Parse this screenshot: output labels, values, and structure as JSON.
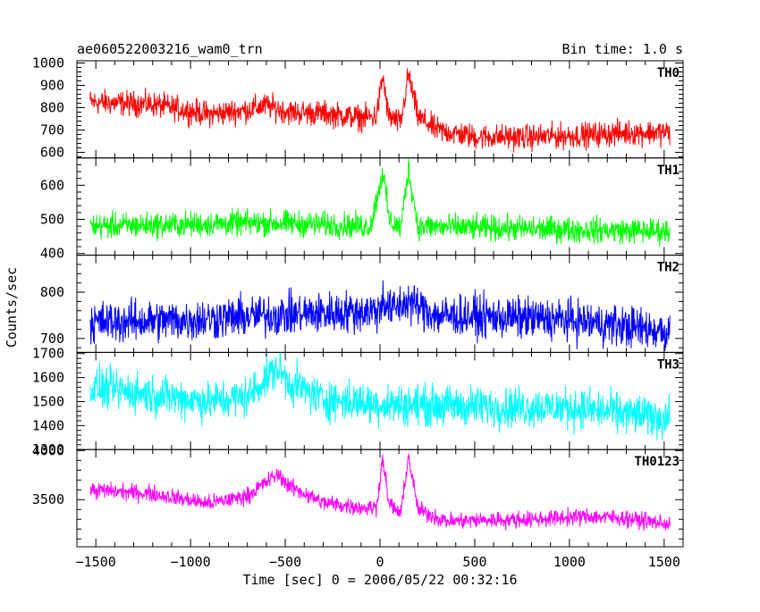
{
  "header": {
    "left_title": "ae060522003216_wam0_trn",
    "right_title": "Bin time: 1.0 s"
  },
  "chart_data": {
    "type": "line",
    "title": "ae060522003216_wam0_trn",
    "subtitle": "Bin time: 1.0 s",
    "xlabel": "Time [sec] 0 = 2006/05/22 00:32:16",
    "ylabel": "Counts/sec",
    "xlim": [
      -1600,
      1600
    ],
    "x_ticks": [
      -1500,
      -1000,
      -500,
      0,
      500,
      1000,
      1500
    ],
    "x_tick_labels": [
      "−1500",
      "−1000",
      "−500",
      "0",
      "500",
      "1000",
      "1500"
    ],
    "x_data_range": [
      -1530,
      1530
    ],
    "grid": false,
    "panels": [
      {
        "name": "TH0",
        "color": "#ff0000",
        "ylim": [
          575,
          1010
        ],
        "y_ticks": [
          600,
          700,
          800,
          900,
          1000
        ],
        "y_tick_labels": [
          "600",
          "700",
          "800",
          "900",
          "1000"
        ],
        "noise": 30,
        "profile": [
          [
            -1530,
            825
          ],
          [
            -1200,
            815
          ],
          [
            -900,
            770
          ],
          [
            -700,
            790
          ],
          [
            -600,
            810
          ],
          [
            -480,
            780
          ],
          [
            -300,
            775
          ],
          [
            -100,
            755
          ],
          [
            -20,
            760
          ],
          [
            15,
            940
          ],
          [
            45,
            760
          ],
          [
            110,
            730
          ],
          [
            150,
            950
          ],
          [
            200,
            760
          ],
          [
            300,
            700
          ],
          [
            500,
            670
          ],
          [
            800,
            668
          ],
          [
            1100,
            678
          ],
          [
            1300,
            688
          ],
          [
            1530,
            690
          ]
        ]
      },
      {
        "name": "TH1",
        "color": "#00ff00",
        "ylim": [
          395,
          680
        ],
        "y_ticks": [
          400,
          500,
          600
        ],
        "y_tick_labels": [
          "400",
          "500",
          "600"
        ],
        "noise": 20,
        "profile": [
          [
            -1530,
            480
          ],
          [
            -1000,
            485
          ],
          [
            -600,
            490
          ],
          [
            -300,
            485
          ],
          [
            -50,
            480
          ],
          [
            15,
            640
          ],
          [
            50,
            495
          ],
          [
            110,
            475
          ],
          [
            150,
            650
          ],
          [
            200,
            480
          ],
          [
            500,
            475
          ],
          [
            1000,
            470
          ],
          [
            1530,
            465
          ]
        ]
      },
      {
        "name": "TH2",
        "color": "#0000ff",
        "ylim": [
          670,
          880
        ],
        "y_ticks": [
          700,
          800
        ],
        "y_tick_labels": [
          "700",
          "800"
        ],
        "noise": 24,
        "profile": [
          [
            -1530,
            735
          ],
          [
            -1000,
            740
          ],
          [
            -600,
            750
          ],
          [
            -300,
            755
          ],
          [
            0,
            760
          ],
          [
            15,
            790
          ],
          [
            50,
            760
          ],
          [
            150,
            780
          ],
          [
            300,
            750
          ],
          [
            700,
            745
          ],
          [
            1000,
            740
          ],
          [
            1530,
            715
          ]
        ]
      },
      {
        "name": "TH3",
        "color": "#00ffff",
        "ylim": [
          1300,
          1705
        ],
        "y_ticks": [
          1300,
          1400,
          1500,
          1600,
          1700
        ],
        "y_tick_labels": [
          "1300",
          "1400",
          "1500",
          "1600",
          "1700"
        ],
        "noise": 45,
        "profile": [
          [
            -1530,
            1560
          ],
          [
            -1200,
            1530
          ],
          [
            -900,
            1500
          ],
          [
            -700,
            1520
          ],
          [
            -600,
            1600
          ],
          [
            -540,
            1640
          ],
          [
            -480,
            1580
          ],
          [
            -300,
            1510
          ],
          [
            0,
            1490
          ],
          [
            500,
            1480
          ],
          [
            1000,
            1475
          ],
          [
            1530,
            1430
          ]
        ]
      },
      {
        "name": "TH0123",
        "color": "#ff00ff",
        "ylim": [
          3020,
          4010
        ],
        "y_ticks": [
          3500,
          4000
        ],
        "y_tick_labels": [
          "3500",
          "4000"
        ],
        "noise": 45,
        "profile": [
          [
            -1530,
            3600
          ],
          [
            -1200,
            3560
          ],
          [
            -900,
            3460
          ],
          [
            -700,
            3540
          ],
          [
            -600,
            3680
          ],
          [
            -540,
            3760
          ],
          [
            -480,
            3640
          ],
          [
            -300,
            3470
          ],
          [
            -100,
            3420
          ],
          [
            -20,
            3420
          ],
          [
            15,
            3930
          ],
          [
            45,
            3470
          ],
          [
            110,
            3350
          ],
          [
            150,
            3950
          ],
          [
            200,
            3400
          ],
          [
            350,
            3280
          ],
          [
            500,
            3290
          ],
          [
            800,
            3300
          ],
          [
            1100,
            3330
          ],
          [
            1300,
            3310
          ],
          [
            1530,
            3250
          ]
        ]
      }
    ]
  }
}
